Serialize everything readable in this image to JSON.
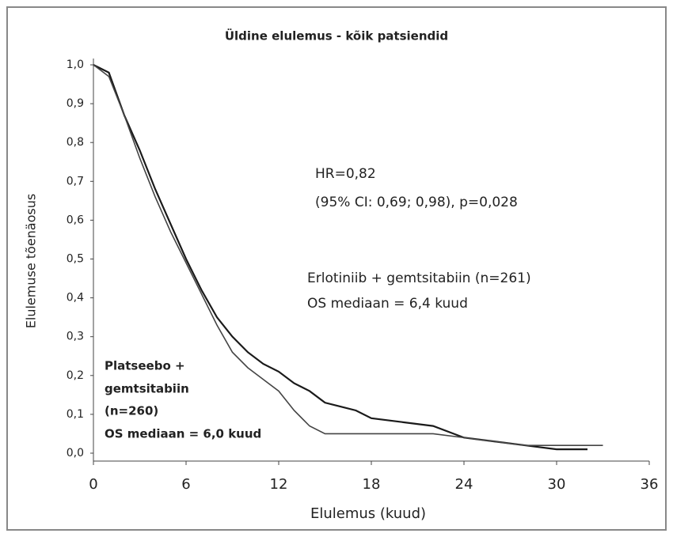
{
  "chart_data": {
    "type": "line",
    "title": "Üldine elulemus - kõik patsiendid",
    "xlabel": "Elulemus (kuud)",
    "ylabel": "Elulemuse tõenäosus",
    "annotations": [
      "HR=0,82",
      "(95% CI: 0,69; 0,98), p=0,028",
      "Erlotiniib + gemtsitabiin (n=261)",
      "OS mediaan = 6,4 kuud",
      "Platseebo +",
      "gemtsitabiin",
      "(n=260)",
      "OS mediaan = 6,0 kuud"
    ],
    "x": [
      0,
      1,
      2,
      3,
      4,
      5,
      6,
      7,
      8,
      9,
      10,
      11,
      12,
      13,
      14,
      15,
      16,
      17,
      18,
      20,
      22,
      24,
      26,
      28,
      30,
      32,
      33
    ],
    "series": [
      {
        "color": "#1a1a1a",
        "values": [
          1.0,
          0.98,
          0.87,
          0.78,
          0.68,
          0.59,
          0.5,
          0.42,
          0.35,
          0.3,
          0.26,
          0.23,
          0.21,
          0.18,
          0.16,
          0.13,
          0.12,
          0.11,
          0.09,
          0.08,
          0.07,
          0.04,
          0.03,
          0.02,
          0.01,
          0.01,
          null
        ]
      },
      {
        "color": "#444444",
        "values": [
          1.0,
          0.97,
          0.87,
          0.76,
          0.66,
          0.57,
          0.49,
          0.41,
          0.33,
          0.26,
          0.22,
          0.19,
          0.16,
          0.11,
          0.07,
          0.05,
          0.05,
          0.05,
          0.05,
          0.05,
          0.05,
          0.04,
          0.03,
          0.02,
          0.02,
          0.02,
          0.02
        ]
      }
    ],
    "xlim": [
      0,
      36
    ],
    "xticks": [
      0,
      6,
      12,
      18,
      24,
      30,
      36
    ],
    "ylim": [
      0,
      1
    ],
    "yticks": [
      {
        "value": 0,
        "label": "0,0"
      },
      {
        "value": 0.1,
        "label": "0,1"
      },
      {
        "value": 0.2,
        "label": "0,2"
      },
      {
        "value": 0.3,
        "label": "0,3"
      },
      {
        "value": 0.4,
        "label": "0,4"
      },
      {
        "value": 0.5,
        "label": "0,5"
      },
      {
        "value": 0.6,
        "label": "0,6"
      },
      {
        "value": 0.7,
        "label": "0,7"
      },
      {
        "value": 0.8,
        "label": "0,8"
      },
      {
        "value": 0.9,
        "label": "0,9"
      },
      {
        "value": 1,
        "label": "1,0"
      }
    ],
    "grid": false
  }
}
